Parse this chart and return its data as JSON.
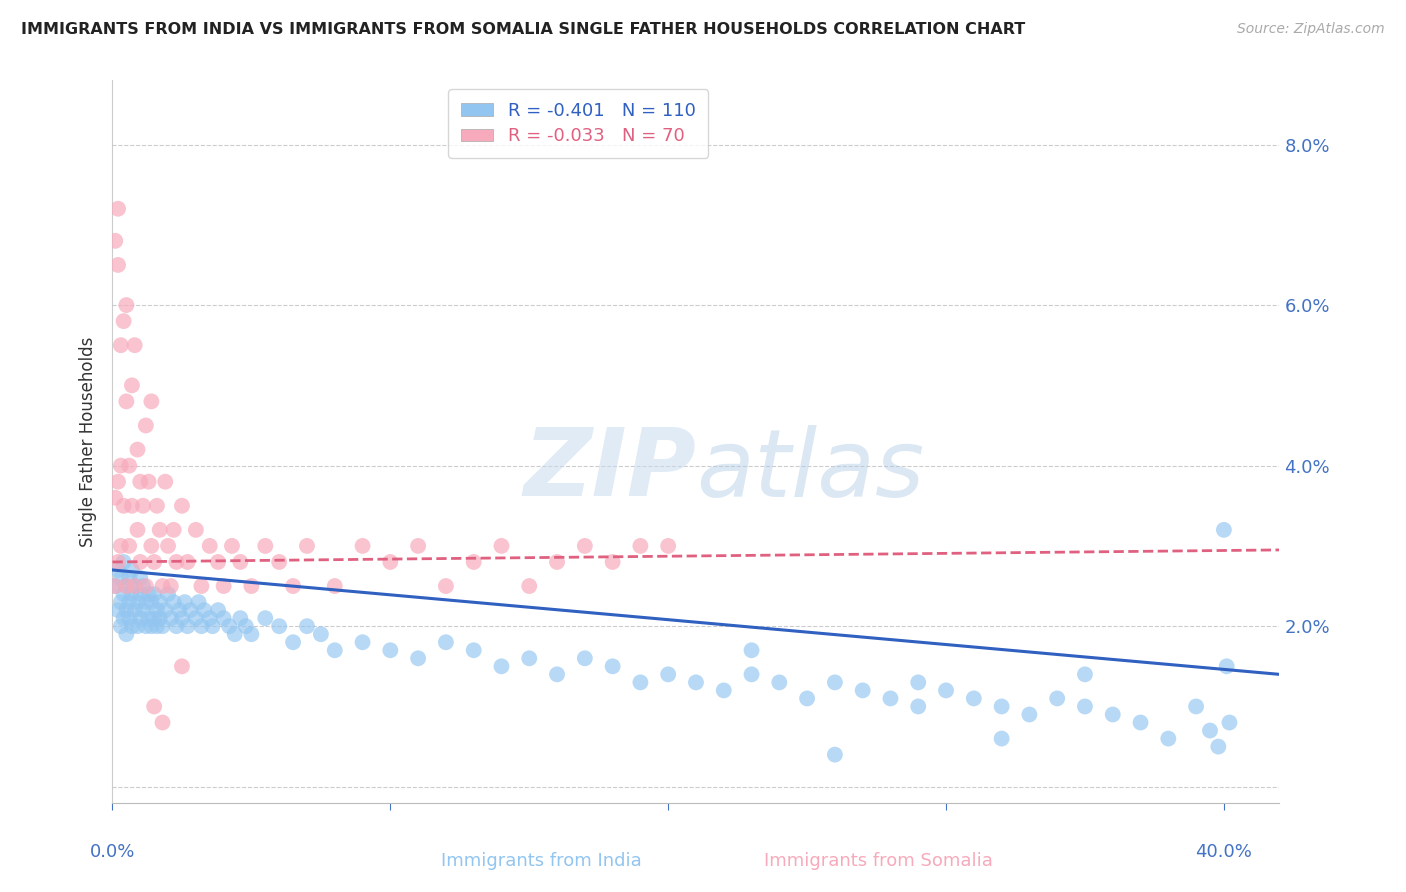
{
  "title": "IMMIGRANTS FROM INDIA VS IMMIGRANTS FROM SOMALIA SINGLE FATHER HOUSEHOLDS CORRELATION CHART",
  "source": "Source: ZipAtlas.com",
  "ylabel": "Single Father Households",
  "xlabel_ticks": [
    "0.0%",
    "",
    "",
    "",
    "40.0%"
  ],
  "ylabel_ticks": [
    "",
    "2.0%",
    "4.0%",
    "6.0%",
    "8.0%"
  ],
  "xlim": [
    0.0,
    0.42
  ],
  "ylim": [
    -0.002,
    0.088
  ],
  "yticks": [
    0.0,
    0.02,
    0.04,
    0.06,
    0.08
  ],
  "xticks": [
    0.0,
    0.1,
    0.2,
    0.3,
    0.4
  ],
  "india_R": -0.401,
  "india_N": 110,
  "somalia_R": -0.033,
  "somalia_N": 70,
  "india_color": "#92C5F0",
  "somalia_color": "#F7AABB",
  "india_line_color": "#3060C0",
  "somalia_line_color": "#E06080",
  "watermark_color": "#D8EAF8",
  "india_line_x": [
    0.0,
    0.42
  ],
  "india_line_y": [
    0.027,
    0.014
  ],
  "somalia_line_x": [
    0.0,
    0.42
  ],
  "somalia_line_y": [
    0.028,
    0.0295
  ],
  "india_scatter_x": [
    0.001,
    0.002,
    0.002,
    0.003,
    0.003,
    0.003,
    0.004,
    0.004,
    0.004,
    0.005,
    0.005,
    0.005,
    0.006,
    0.006,
    0.006,
    0.007,
    0.007,
    0.007,
    0.008,
    0.008,
    0.009,
    0.009,
    0.01,
    0.01,
    0.01,
    0.011,
    0.011,
    0.012,
    0.012,
    0.013,
    0.013,
    0.014,
    0.014,
    0.015,
    0.015,
    0.016,
    0.016,
    0.017,
    0.017,
    0.018,
    0.019,
    0.02,
    0.021,
    0.022,
    0.023,
    0.024,
    0.025,
    0.026,
    0.027,
    0.028,
    0.03,
    0.031,
    0.032,
    0.033,
    0.035,
    0.036,
    0.038,
    0.04,
    0.042,
    0.044,
    0.046,
    0.048,
    0.05,
    0.055,
    0.06,
    0.065,
    0.07,
    0.075,
    0.08,
    0.09,
    0.1,
    0.11,
    0.12,
    0.13,
    0.14,
    0.15,
    0.16,
    0.17,
    0.18,
    0.19,
    0.2,
    0.21,
    0.22,
    0.23,
    0.24,
    0.25,
    0.26,
    0.27,
    0.28,
    0.29,
    0.3,
    0.31,
    0.32,
    0.33,
    0.34,
    0.35,
    0.36,
    0.37,
    0.38,
    0.39,
    0.395,
    0.398,
    0.4,
    0.401,
    0.402,
    0.35,
    0.32,
    0.29,
    0.26,
    0.23
  ],
  "india_scatter_y": [
    0.025,
    0.022,
    0.027,
    0.02,
    0.023,
    0.026,
    0.021,
    0.024,
    0.028,
    0.022,
    0.025,
    0.019,
    0.023,
    0.026,
    0.021,
    0.024,
    0.02,
    0.027,
    0.022,
    0.025,
    0.02,
    0.023,
    0.021,
    0.024,
    0.026,
    0.022,
    0.025,
    0.02,
    0.023,
    0.021,
    0.024,
    0.02,
    0.023,
    0.021,
    0.024,
    0.02,
    0.022,
    0.021,
    0.023,
    0.02,
    0.022,
    0.024,
    0.021,
    0.023,
    0.02,
    0.022,
    0.021,
    0.023,
    0.02,
    0.022,
    0.021,
    0.023,
    0.02,
    0.022,
    0.021,
    0.02,
    0.022,
    0.021,
    0.02,
    0.019,
    0.021,
    0.02,
    0.019,
    0.021,
    0.02,
    0.018,
    0.02,
    0.019,
    0.017,
    0.018,
    0.017,
    0.016,
    0.018,
    0.017,
    0.015,
    0.016,
    0.014,
    0.016,
    0.015,
    0.013,
    0.014,
    0.013,
    0.012,
    0.014,
    0.013,
    0.011,
    0.013,
    0.012,
    0.011,
    0.01,
    0.012,
    0.011,
    0.01,
    0.009,
    0.011,
    0.01,
    0.009,
    0.008,
    0.006,
    0.01,
    0.007,
    0.005,
    0.032,
    0.015,
    0.008,
    0.014,
    0.006,
    0.013,
    0.004,
    0.017
  ],
  "somalia_scatter_x": [
    0.001,
    0.001,
    0.001,
    0.002,
    0.002,
    0.002,
    0.002,
    0.003,
    0.003,
    0.003,
    0.004,
    0.004,
    0.005,
    0.005,
    0.005,
    0.006,
    0.006,
    0.007,
    0.007,
    0.008,
    0.008,
    0.009,
    0.009,
    0.01,
    0.01,
    0.011,
    0.012,
    0.012,
    0.013,
    0.014,
    0.014,
    0.015,
    0.016,
    0.017,
    0.018,
    0.019,
    0.02,
    0.021,
    0.022,
    0.023,
    0.025,
    0.027,
    0.03,
    0.032,
    0.035,
    0.038,
    0.04,
    0.043,
    0.046,
    0.05,
    0.055,
    0.06,
    0.065,
    0.07,
    0.08,
    0.09,
    0.1,
    0.11,
    0.12,
    0.13,
    0.14,
    0.15,
    0.16,
    0.17,
    0.18,
    0.19,
    0.2,
    0.015,
    0.018,
    0.025
  ],
  "somalia_scatter_y": [
    0.036,
    0.068,
    0.025,
    0.065,
    0.072,
    0.038,
    0.028,
    0.055,
    0.04,
    0.03,
    0.058,
    0.035,
    0.048,
    0.025,
    0.06,
    0.04,
    0.03,
    0.05,
    0.035,
    0.055,
    0.025,
    0.042,
    0.032,
    0.038,
    0.028,
    0.035,
    0.045,
    0.025,
    0.038,
    0.03,
    0.048,
    0.028,
    0.035,
    0.032,
    0.025,
    0.038,
    0.03,
    0.025,
    0.032,
    0.028,
    0.035,
    0.028,
    0.032,
    0.025,
    0.03,
    0.028,
    0.025,
    0.03,
    0.028,
    0.025,
    0.03,
    0.028,
    0.025,
    0.03,
    0.025,
    0.03,
    0.028,
    0.03,
    0.025,
    0.028,
    0.03,
    0.025,
    0.028,
    0.03,
    0.028,
    0.03,
    0.03,
    0.01,
    0.008,
    0.015
  ]
}
